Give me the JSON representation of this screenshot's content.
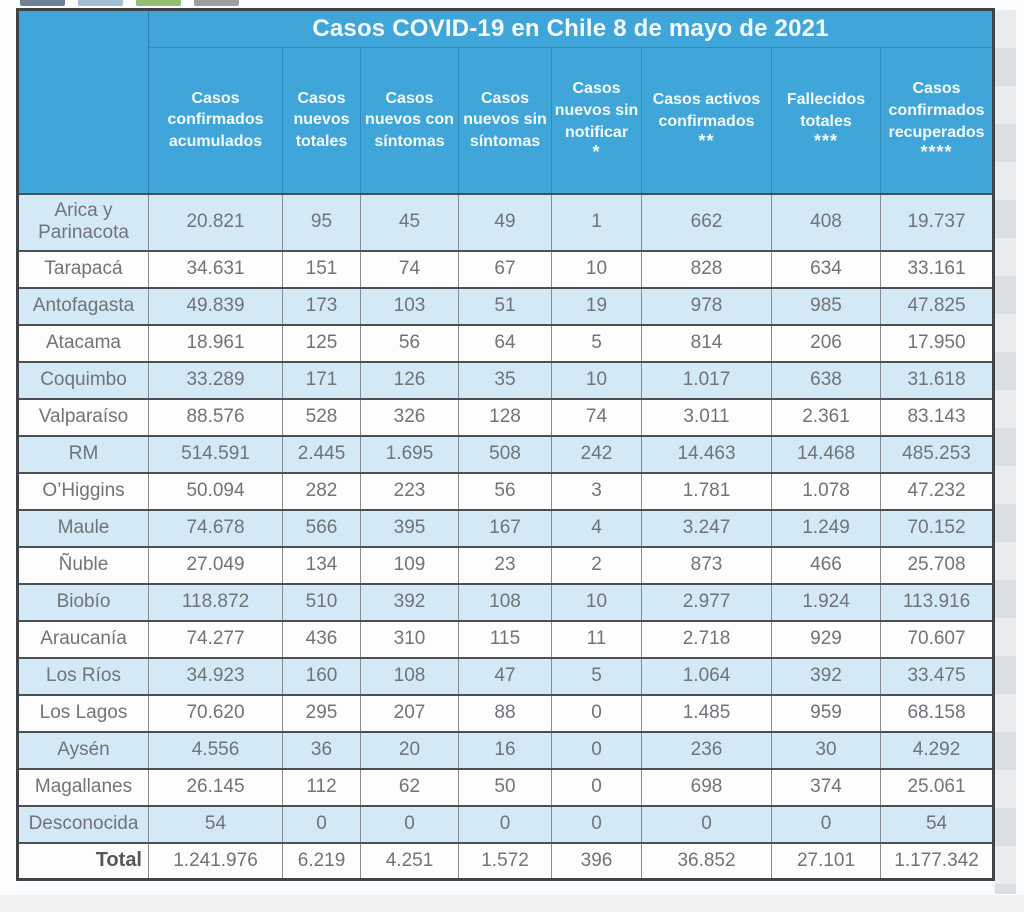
{
  "decor_tabs": [
    {
      "name": "tab-chip-1",
      "color": "#6f8096"
    },
    {
      "name": "tab-chip-2",
      "color": "#a3bdd1"
    },
    {
      "name": "tab-chip-3",
      "color": "#93bc75"
    },
    {
      "name": "tab-chip-4",
      "color": "#9e9ea0"
    }
  ],
  "colors": {
    "header_blue": "#40a5d8",
    "striped_row_blue": "#d3e9f6",
    "plain_row_white": "#fdfdfe",
    "grid_dark": "#4b5054",
    "number_text": "#6f7478",
    "region_text": "#6e8c9e"
  },
  "table": {
    "title": "Casos COVID-19 en Chile 8 de mayo de 2021",
    "columns": [
      {
        "label": "Casos confirmados acumulados",
        "stars": ""
      },
      {
        "label": "Casos nuevos totales",
        "stars": ""
      },
      {
        "label": "Casos nuevos con síntomas",
        "stars": ""
      },
      {
        "label": "Casos nuevos sin síntomas",
        "stars": ""
      },
      {
        "label": "Casos nuevos sin notificar",
        "stars": "*"
      },
      {
        "label": "Casos activos confirmados",
        "stars": "**"
      },
      {
        "label": "Fallecidos totales",
        "stars": "***"
      },
      {
        "label": "Casos confirmados recuperados",
        "stars": "****"
      }
    ],
    "rows": [
      {
        "region": "Arica y Parinacota",
        "values": [
          "20.821",
          "95",
          "45",
          "49",
          "1",
          "662",
          "408",
          "19.737"
        ]
      },
      {
        "region": "Tarapacá",
        "values": [
          "34.631",
          "151",
          "74",
          "67",
          "10",
          "828",
          "634",
          "33.161"
        ]
      },
      {
        "region": "Antofagasta",
        "values": [
          "49.839",
          "173",
          "103",
          "51",
          "19",
          "978",
          "985",
          "47.825"
        ]
      },
      {
        "region": "Atacama",
        "values": [
          "18.961",
          "125",
          "56",
          "64",
          "5",
          "814",
          "206",
          "17.950"
        ]
      },
      {
        "region": "Coquimbo",
        "values": [
          "33.289",
          "171",
          "126",
          "35",
          "10",
          "1.017",
          "638",
          "31.618"
        ]
      },
      {
        "region": "Valparaíso",
        "values": [
          "88.576",
          "528",
          "326",
          "128",
          "74",
          "3.011",
          "2.361",
          "83.143"
        ]
      },
      {
        "region": "RM",
        "values": [
          "514.591",
          "2.445",
          "1.695",
          "508",
          "242",
          "14.463",
          "14.468",
          "485.253"
        ]
      },
      {
        "region": "O’Higgins",
        "values": [
          "50.094",
          "282",
          "223",
          "56",
          "3",
          "1.781",
          "1.078",
          "47.232"
        ]
      },
      {
        "region": "Maule",
        "values": [
          "74.678",
          "566",
          "395",
          "167",
          "4",
          "3.247",
          "1.249",
          "70.152"
        ]
      },
      {
        "region": "Ñuble",
        "values": [
          "27.049",
          "134",
          "109",
          "23",
          "2",
          "873",
          "466",
          "25.708"
        ]
      },
      {
        "region": "Biobío",
        "values": [
          "118.872",
          "510",
          "392",
          "108",
          "10",
          "2.977",
          "1.924",
          "113.916"
        ]
      },
      {
        "region": "Araucanía",
        "values": [
          "74.277",
          "436",
          "310",
          "115",
          "11",
          "2.718",
          "929",
          "70.607"
        ]
      },
      {
        "region": "Los Ríos",
        "values": [
          "34.923",
          "160",
          "108",
          "47",
          "5",
          "1.064",
          "392",
          "33.475"
        ]
      },
      {
        "region": "Los Lagos",
        "values": [
          "70.620",
          "295",
          "207",
          "88",
          "0",
          "1.485",
          "959",
          "68.158"
        ]
      },
      {
        "region": "Aysén",
        "values": [
          "4.556",
          "36",
          "20",
          "16",
          "0",
          "236",
          "30",
          "4.292"
        ]
      },
      {
        "region": "Magallanes",
        "values": [
          "26.145",
          "112",
          "62",
          "50",
          "0",
          "698",
          "374",
          "25.061"
        ]
      },
      {
        "region": "Desconocida",
        "values": [
          "54",
          "0",
          "0",
          "0",
          "0",
          "0",
          "0",
          "54"
        ]
      }
    ],
    "total": {
      "label": "Total",
      "values": [
        "1.241.976",
        "6.219",
        "4.251",
        "1.572",
        "396",
        "36.852",
        "27.101",
        "1.177.342"
      ]
    }
  },
  "chart_data": {
    "type": "table",
    "title": "Casos COVID-19 en Chile 8 de mayo de 2021",
    "columns": [
      "Casos confirmados acumulados",
      "Casos nuevos totales",
      "Casos nuevos con síntomas",
      "Casos nuevos sin síntomas",
      "Casos nuevos sin notificar *",
      "Casos activos confirmados **",
      "Fallecidos totales ***",
      "Casos confirmados recuperados ****"
    ],
    "categories": [
      "Arica y Parinacota",
      "Tarapacá",
      "Antofagasta",
      "Atacama",
      "Coquimbo",
      "Valparaíso",
      "RM",
      "O’Higgins",
      "Maule",
      "Ñuble",
      "Biobío",
      "Araucanía",
      "Los Ríos",
      "Los Lagos",
      "Aysén",
      "Magallanes",
      "Desconocida"
    ],
    "rows": [
      [
        20821,
        95,
        45,
        49,
        1,
        662,
        408,
        19737
      ],
      [
        34631,
        151,
        74,
        67,
        10,
        828,
        634,
        33161
      ],
      [
        49839,
        173,
        103,
        51,
        19,
        978,
        985,
        47825
      ],
      [
        18961,
        125,
        56,
        64,
        5,
        814,
        206,
        17950
      ],
      [
        33289,
        171,
        126,
        35,
        10,
        1017,
        638,
        31618
      ],
      [
        88576,
        528,
        326,
        128,
        74,
        3011,
        2361,
        83143
      ],
      [
        514591,
        2445,
        1695,
        508,
        242,
        14463,
        14468,
        485253
      ],
      [
        50094,
        282,
        223,
        56,
        3,
        1781,
        1078,
        47232
      ],
      [
        74678,
        566,
        395,
        167,
        4,
        3247,
        1249,
        70152
      ],
      [
        27049,
        134,
        109,
        23,
        2,
        873,
        466,
        25708
      ],
      [
        118872,
        510,
        392,
        108,
        10,
        2977,
        1924,
        113916
      ],
      [
        74277,
        436,
        310,
        115,
        11,
        2718,
        929,
        70607
      ],
      [
        34923,
        160,
        108,
        47,
        5,
        1064,
        392,
        33475
      ],
      [
        70620,
        295,
        207,
        88,
        0,
        1485,
        959,
        68158
      ],
      [
        4556,
        36,
        20,
        16,
        0,
        236,
        30,
        4292
      ],
      [
        26145,
        112,
        62,
        50,
        0,
        698,
        374,
        25061
      ],
      [
        54,
        0,
        0,
        0,
        0,
        0,
        0,
        54
      ]
    ],
    "total_row": [
      1241976,
      6219,
      4251,
      1572,
      396,
      36852,
      27101,
      1177342
    ]
  }
}
